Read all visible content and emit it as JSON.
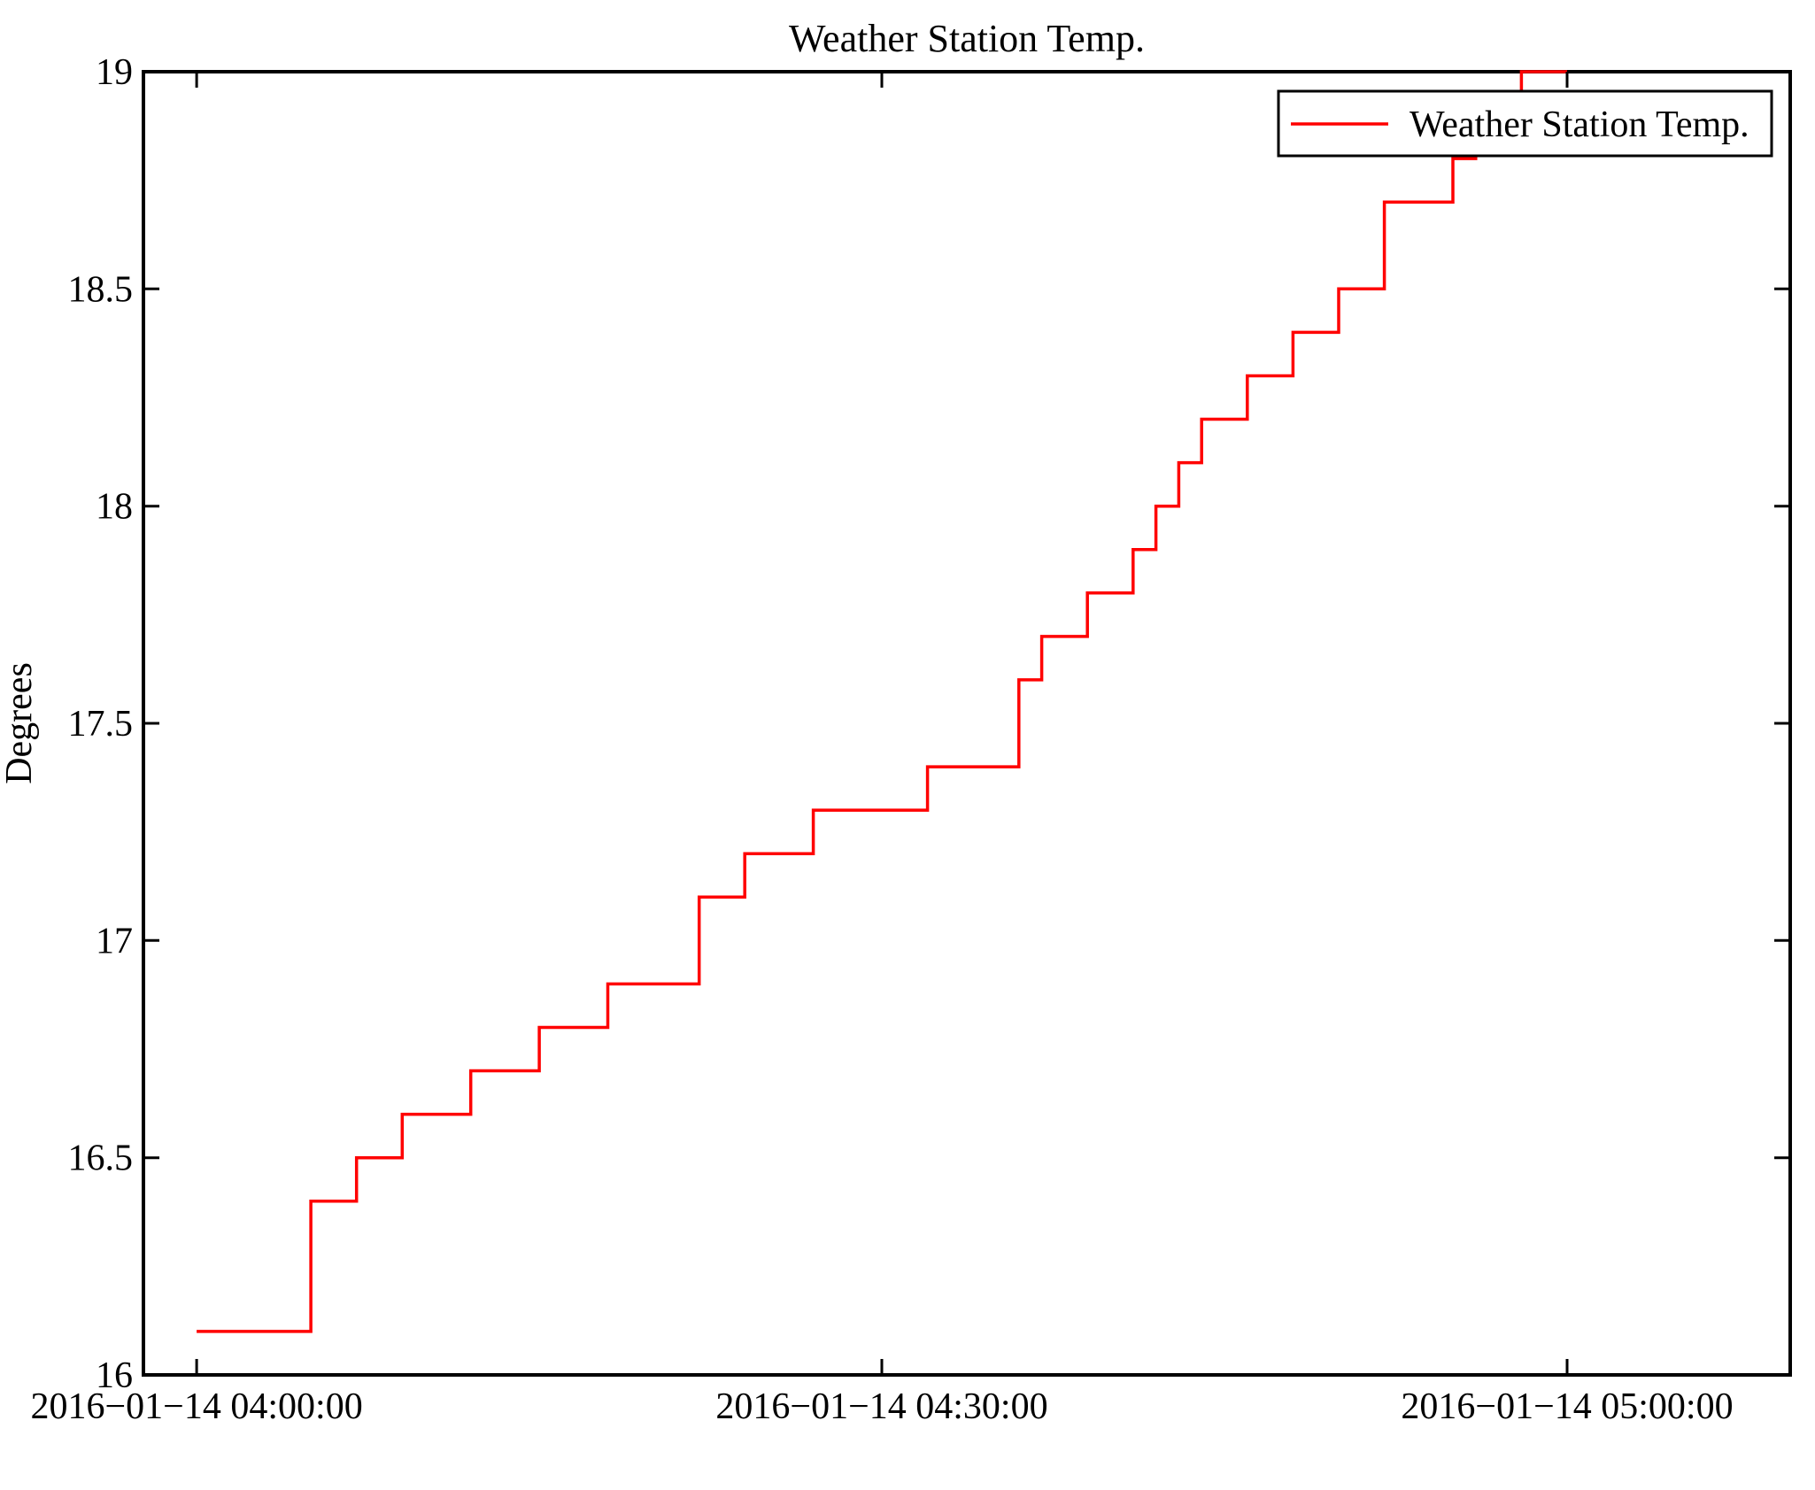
{
  "figure": {
    "background": "#ffffff",
    "axis_color": "#000000"
  },
  "chart_data": {
    "type": "line",
    "style": "step-post",
    "title": "Weather Station Temp.",
    "xlabel": "",
    "ylabel": "Degrees",
    "legend_label": "Weather Station Temp.",
    "legend_position": "top-right-inside",
    "line_color": "#ff0000",
    "grid": false,
    "ylim": [
      16,
      19
    ],
    "xlim_minutes_from_0400": [
      -2.33,
      69.77
    ],
    "y_ticks": [
      {
        "label": "16",
        "value": 16
      },
      {
        "label": "16.5",
        "value": 16.5
      },
      {
        "label": "17",
        "value": 17
      },
      {
        "label": "17.5",
        "value": 17.5
      },
      {
        "label": "18",
        "value": 18
      },
      {
        "label": "18.5",
        "value": 18.5
      },
      {
        "label": "19",
        "value": 19
      }
    ],
    "x_ticks": [
      {
        "label": "2016−01−14 04:00:00",
        "minutes": 0
      },
      {
        "label": "2016−01−14 04:30:00",
        "minutes": 30
      },
      {
        "label": "2016−01−14 05:00:00",
        "minutes": 60
      }
    ],
    "points": [
      {
        "t": "04:00:00",
        "v": 16.1
      },
      {
        "t": "04:05:00",
        "v": 16.4
      },
      {
        "t": "04:07:00",
        "v": 16.5
      },
      {
        "t": "04:09:00",
        "v": 16.6
      },
      {
        "t": "04:12:00",
        "v": 16.7
      },
      {
        "t": "04:15:00",
        "v": 16.8
      },
      {
        "t": "04:18:00",
        "v": 16.9
      },
      {
        "t": "04:22:00",
        "v": 17.1
      },
      {
        "t": "04:24:00",
        "v": 17.2
      },
      {
        "t": "04:27:00",
        "v": 17.3
      },
      {
        "t": "04:32:00",
        "v": 17.4
      },
      {
        "t": "04:36:00",
        "v": 17.6
      },
      {
        "t": "04:37:00",
        "v": 17.7
      },
      {
        "t": "04:39:00",
        "v": 17.8
      },
      {
        "t": "04:41:00",
        "v": 17.9
      },
      {
        "t": "04:42:00",
        "v": 18.0
      },
      {
        "t": "04:43:00",
        "v": 18.1
      },
      {
        "t": "04:44:00",
        "v": 18.2
      },
      {
        "t": "04:46:00",
        "v": 18.3
      },
      {
        "t": "04:48:00",
        "v": 18.4
      },
      {
        "t": "04:50:00",
        "v": 18.5
      },
      {
        "t": "04:52:00",
        "v": 18.7
      },
      {
        "t": "04:55:00",
        "v": 18.8
      },
      {
        "t": "04:56:00",
        "v": 18.9
      },
      {
        "t": "04:58:00",
        "v": 19.0
      },
      {
        "t": "05:00:00",
        "v": 19.0
      }
    ]
  }
}
